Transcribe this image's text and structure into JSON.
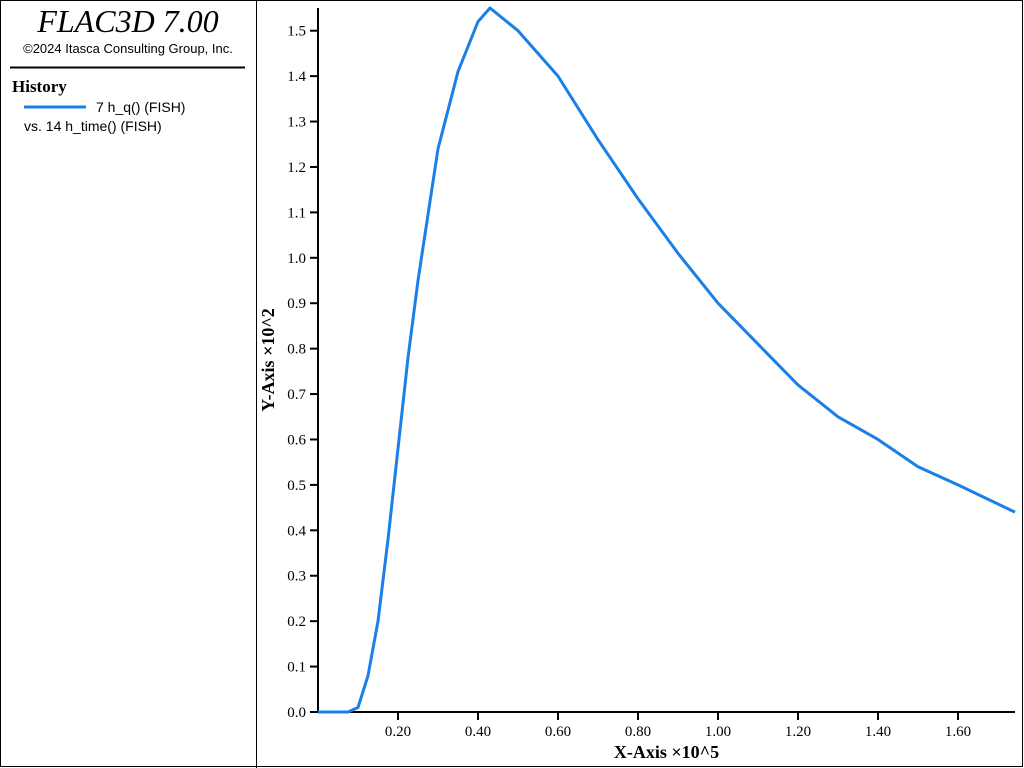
{
  "header": {
    "title": "FLAC3D 7.00",
    "copyright": "©2024 Itasca Consulting Group, Inc."
  },
  "legend": {
    "title": "History",
    "subtitle": "vs. 14 h_time() (FISH)"
  },
  "chart_data": {
    "type": "line",
    "x_label": "X-Axis ×10^5",
    "y_label": "Y-Axis ×10^2",
    "x": [
      0,
      0.05,
      0.075,
      0.1,
      0.125,
      0.15,
      0.175,
      0.2,
      0.225,
      0.25,
      0.3,
      0.35,
      0.4,
      0.43,
      0.5,
      0.6,
      0.7,
      0.8,
      0.9,
      1.0,
      1.1,
      1.2,
      1.3,
      1.4,
      1.5,
      1.6,
      1.7425
    ],
    "series": [
      {
        "name": "7 h_q() (FISH)",
        "color": "#1a7fe6",
        "values": [
          0,
          0,
          0,
          0.01,
          0.08,
          0.2,
          0.38,
          0.58,
          0.78,
          0.95,
          1.24,
          1.41,
          1.52,
          1.55,
          1.5,
          1.4,
          1.26,
          1.13,
          1.01,
          0.9,
          0.81,
          0.72,
          0.65,
          0.6,
          0.54,
          0.5,
          0.44
        ]
      }
    ],
    "xlim": [
      0,
      1.7425
    ],
    "ylim": [
      0,
      1.55
    ],
    "xticks": [
      {
        "value": 0.2,
        "label": "0.20"
      },
      {
        "value": 0.4,
        "label": "0.40"
      },
      {
        "value": 0.6,
        "label": "0.60"
      },
      {
        "value": 0.8,
        "label": "0.80"
      },
      {
        "value": 1.0,
        "label": "1.00"
      },
      {
        "value": 1.2,
        "label": "1.20"
      },
      {
        "value": 1.4,
        "label": "1.40"
      },
      {
        "value": 1.6,
        "label": "1.60"
      }
    ],
    "yticks": [
      {
        "value": 0,
        "label": "0.0"
      },
      0.1,
      0.2,
      0.3,
      0.4,
      0.5,
      0.6,
      0.7,
      0.8,
      0.9,
      {
        "value": 1.0,
        "label": "1.0"
      },
      1.1,
      1.2,
      1.3,
      1.4,
      1.5
    ]
  }
}
